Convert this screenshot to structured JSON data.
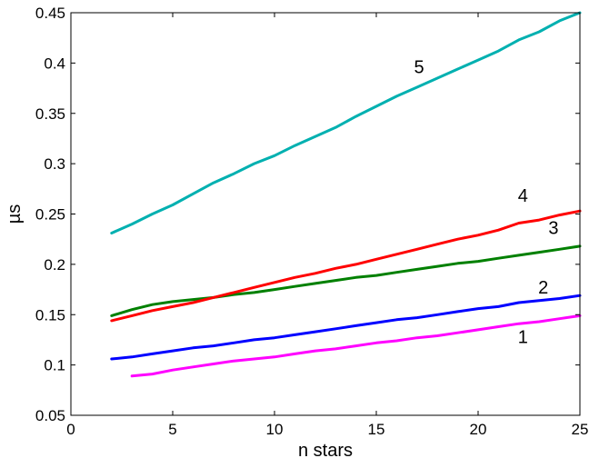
{
  "chart_data": {
    "type": "line",
    "title": "",
    "xlabel": "n stars",
    "ylabel": "µs",
    "xlim": [
      0,
      25
    ],
    "ylim": [
      0.05,
      0.45
    ],
    "xticks": [
      0,
      5,
      10,
      15,
      20,
      25
    ],
    "yticks": [
      0.05,
      0.1,
      0.15,
      0.2,
      0.25,
      0.3,
      0.35,
      0.4,
      0.45
    ],
    "xtick_labels": [
      "0",
      "5",
      "10",
      "15",
      "20",
      "25"
    ],
    "ytick_labels": [
      "0.05",
      "0.1",
      "0.15",
      "0.2",
      "0.25",
      "0.3",
      "0.35",
      "0.4",
      "0.45"
    ],
    "grid": false,
    "legend": "none",
    "series": [
      {
        "label": "1",
        "color": "#ff00ff",
        "x": [
          3,
          4,
          5,
          6,
          7,
          8,
          9,
          10,
          11,
          12,
          13,
          14,
          15,
          16,
          17,
          18,
          19,
          20,
          21,
          22,
          23,
          24,
          25
        ],
        "values": [
          0.089,
          0.091,
          0.095,
          0.098,
          0.101,
          0.104,
          0.106,
          0.108,
          0.111,
          0.114,
          0.116,
          0.119,
          0.122,
          0.124,
          0.127,
          0.129,
          0.132,
          0.135,
          0.138,
          0.141,
          0.143,
          0.146,
          0.149
        ],
        "label_x": 22.2,
        "label_y": 0.122
      },
      {
        "label": "2",
        "color": "#0000ff",
        "x": [
          2,
          3,
          4,
          5,
          6,
          7,
          8,
          9,
          10,
          11,
          12,
          13,
          14,
          15,
          16,
          17,
          18,
          19,
          20,
          21,
          22,
          23,
          24,
          25
        ],
        "values": [
          0.106,
          0.108,
          0.111,
          0.114,
          0.117,
          0.119,
          0.122,
          0.125,
          0.127,
          0.13,
          0.133,
          0.136,
          0.139,
          0.142,
          0.145,
          0.147,
          0.15,
          0.153,
          0.156,
          0.158,
          0.162,
          0.164,
          0.166,
          0.169
        ],
        "label_x": 23.2,
        "label_y": 0.171
      },
      {
        "label": "3",
        "color": "#008000",
        "x": [
          2,
          3,
          4,
          5,
          6,
          7,
          8,
          9,
          10,
          11,
          12,
          13,
          14,
          15,
          16,
          17,
          18,
          19,
          20,
          21,
          22,
          23,
          24,
          25
        ],
        "values": [
          0.149,
          0.155,
          0.16,
          0.163,
          0.165,
          0.167,
          0.17,
          0.172,
          0.175,
          0.178,
          0.181,
          0.184,
          0.187,
          0.189,
          0.192,
          0.195,
          0.198,
          0.201,
          0.203,
          0.206,
          0.209,
          0.212,
          0.215,
          0.218
        ],
        "label_x": 23.7,
        "label_y": 0.23
      },
      {
        "label": "4",
        "color": "#ff0000",
        "x": [
          2,
          3,
          4,
          5,
          6,
          7,
          8,
          9,
          10,
          11,
          12,
          13,
          14,
          15,
          16,
          17,
          18,
          19,
          20,
          21,
          22,
          23,
          24,
          25
        ],
        "values": [
          0.144,
          0.149,
          0.154,
          0.158,
          0.162,
          0.167,
          0.172,
          0.177,
          0.182,
          0.187,
          0.191,
          0.196,
          0.2,
          0.205,
          0.21,
          0.215,
          0.22,
          0.225,
          0.229,
          0.234,
          0.241,
          0.244,
          0.249,
          0.253
        ],
        "label_x": 22.2,
        "label_y": 0.262
      },
      {
        "label": "5",
        "color": "#00b0b0",
        "x": [
          2,
          3,
          4,
          5,
          6,
          7,
          8,
          9,
          10,
          11,
          12,
          13,
          14,
          15,
          16,
          17,
          18,
          19,
          20,
          21,
          22,
          23,
          24,
          25
        ],
        "values": [
          0.231,
          0.24,
          0.25,
          0.259,
          0.27,
          0.281,
          0.29,
          0.3,
          0.308,
          0.318,
          0.327,
          0.336,
          0.347,
          0.357,
          0.367,
          0.376,
          0.385,
          0.394,
          0.403,
          0.412,
          0.423,
          0.431,
          0.442,
          0.45
        ],
        "label_x": 17.1,
        "label_y": 0.39
      }
    ]
  }
}
